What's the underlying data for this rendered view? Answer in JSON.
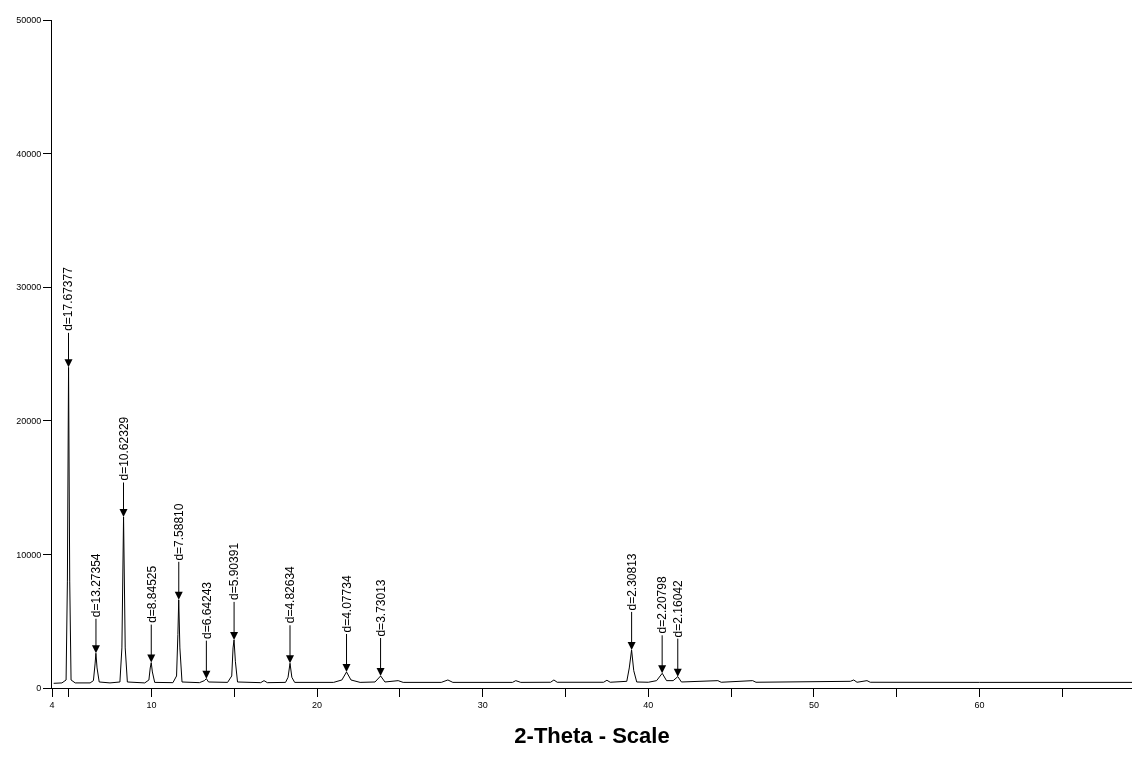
{
  "chart_data": {
    "type": "line",
    "xlabel": "2-Theta - Scale",
    "xlim": [
      4,
      69.2
    ],
    "xticks": [
      4,
      10,
      20,
      30,
      40,
      50,
      60,
      {
        "value": 5,
        "label": null
      },
      {
        "value": 15,
        "label": null
      },
      {
        "value": 25,
        "label": null
      },
      {
        "value": 35,
        "label": null
      },
      {
        "value": 45,
        "label": null
      },
      {
        "value": 55,
        "label": null
      },
      {
        "value": 65,
        "label": null
      }
    ],
    "ylim": [
      0,
      50000
    ],
    "yticks": [
      0,
      10000,
      20000,
      30000,
      40000,
      50000
    ],
    "marker": "none",
    "line_style": "solid",
    "series": [
      {
        "color": "#000000",
        "x": [
          4.1,
          4.6,
          4.85,
          4.93,
          5.0,
          5.07,
          5.15,
          5.4,
          6.3,
          6.5,
          6.6,
          6.65,
          6.72,
          6.85,
          7.5,
          8.1,
          8.22,
          8.32,
          8.42,
          8.55,
          9.6,
          9.85,
          9.93,
          9.99,
          10.06,
          10.2,
          11.3,
          11.52,
          11.6,
          11.65,
          11.72,
          11.85,
          12.9,
          13.2,
          13.32,
          13.45,
          14.6,
          14.85,
          14.93,
          14.99,
          15.07,
          15.2,
          16.6,
          16.8,
          17.0,
          18.1,
          18.25,
          18.37,
          18.48,
          18.65,
          21.0,
          21.5,
          21.78,
          22.05,
          22.6,
          23.5,
          23.84,
          24.1,
          24.9,
          25.2,
          27.5,
          27.9,
          28.2,
          31.8,
          32.0,
          32.3,
          34.1,
          34.3,
          34.5,
          37.3,
          37.5,
          37.7,
          38.7,
          38.85,
          38.99,
          39.12,
          39.3,
          40.0,
          40.5,
          40.84,
          41.1,
          41.5,
          41.78,
          42.0,
          44.2,
          44.4,
          46.3,
          46.5,
          52.2,
          52.4,
          52.6,
          53.2,
          53.4,
          60,
          69.2
        ],
        "values": [
          350,
          380,
          600,
          8000,
          24000,
          8000,
          600,
          380,
          380,
          550,
          1800,
          2600,
          1500,
          450,
          380,
          450,
          3000,
          12800,
          3000,
          450,
          380,
          600,
          1500,
          1900,
          1200,
          420,
          400,
          900,
          4000,
          6600,
          3000,
          450,
          400,
          550,
          700,
          450,
          420,
          900,
          3000,
          3600,
          2000,
          450,
          400,
          550,
          400,
          420,
          800,
          1850,
          800,
          420,
          420,
          600,
          1200,
          600,
          420,
          450,
          900,
          450,
          550,
          420,
          420,
          600,
          420,
          420,
          550,
          420,
          430,
          600,
          430,
          430,
          580,
          430,
          500,
          1500,
          2850,
          1300,
          450,
          430,
          550,
          1100,
          550,
          550,
          850,
          450,
          550,
          430,
          550,
          430,
          500,
          600,
          430,
          550,
          430,
          420,
          420
        ]
      }
    ],
    "annotations": [
      {
        "text": "d=17.67377",
        "x": 4.996,
        "y": 24000
      },
      {
        "text": "d=13.27354",
        "x": 6.654,
        "y": 2600
      },
      {
        "text": "d=10.62329",
        "x": 8.317,
        "y": 12800
      },
      {
        "text": "d=8.84525",
        "x": 9.992,
        "y": 1900
      },
      {
        "text": "d=7.58810",
        "x": 11.653,
        "y": 6600
      },
      {
        "text": "d=6.64243",
        "x": 13.319,
        "y": 700
      },
      {
        "text": "d=5.90391",
        "x": 14.993,
        "y": 3600
      },
      {
        "text": "d=4.82634",
        "x": 18.368,
        "y": 1850
      },
      {
        "text": "d=4.07734",
        "x": 21.78,
        "y": 1200
      },
      {
        "text": "d=3.73013",
        "x": 23.836,
        "y": 900
      },
      {
        "text": "d=2.30813",
        "x": 38.991,
        "y": 2850
      },
      {
        "text": "d=2.20798",
        "x": 40.835,
        "y": 1100
      },
      {
        "text": "d=2.16042",
        "x": 41.778,
        "y": 850
      }
    ]
  }
}
